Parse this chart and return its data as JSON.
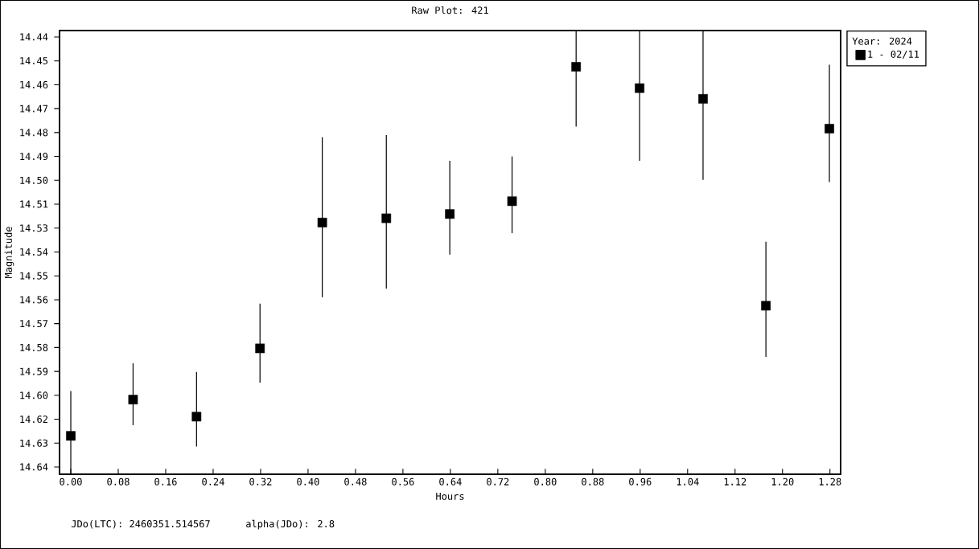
{
  "chart_data": {
    "type": "scatter",
    "title": "Raw Plot: 421",
    "xlabel": "Hours",
    "ylabel": "Magnitude",
    "legend_title": "Year: 2024",
    "annotations": [
      "JDo(LTC): 2460351.514567",
      "alpha(JDo): 2.8"
    ],
    "x": [
      0,
      0.105,
      0.212,
      0.319,
      0.424,
      0.532,
      0.639,
      0.744,
      0.852,
      0.959,
      1.066,
      1.172,
      1.279
    ],
    "series": [
      {
        "name": "1 - 02/11",
        "color": "#000000",
        "values": [
          14.623,
          14.606,
          14.614,
          14.582,
          14.523,
          14.521,
          14.519,
          14.513,
          14.45,
          14.46,
          14.465,
          14.562,
          14.479
        ],
        "errors": [
          [
            14.602,
            14.641
          ],
          [
            14.589,
            14.618
          ],
          [
            14.593,
            14.628
          ],
          [
            14.561,
            14.598
          ],
          [
            14.483,
            14.558
          ],
          [
            14.482,
            14.554
          ],
          [
            14.494,
            14.538
          ],
          [
            14.492,
            14.528
          ],
          [
            14.433,
            14.478
          ],
          [
            14.433,
            14.494
          ],
          [
            14.433,
            14.503
          ],
          [
            14.532,
            14.586
          ],
          [
            14.449,
            14.504
          ]
        ]
      }
    ],
    "xlim": [
      -0.019,
      1.298
    ],
    "ylim": [
      14.641,
      14.433
    ],
    "xticks": [
      {
        "value": 0,
        "label": "0.00"
      },
      {
        "value": 0.08,
        "label": "0.08"
      },
      {
        "value": 0.16,
        "label": "0.16"
      },
      {
        "value": 0.24,
        "label": "0.24"
      },
      {
        "value": 0.32,
        "label": "0.32"
      },
      {
        "value": 0.4,
        "label": "0.40"
      },
      {
        "value": 0.48,
        "label": "0.48"
      },
      {
        "value": 0.56,
        "label": "0.56"
      },
      {
        "value": 0.64,
        "label": "0.64"
      },
      {
        "value": 0.72,
        "label": "0.72"
      },
      {
        "value": 0.8,
        "label": "0.80"
      },
      {
        "value": 0.88,
        "label": "0.88"
      },
      {
        "value": 0.96,
        "label": "0.96"
      },
      {
        "value": 1.04,
        "label": "1.04"
      },
      {
        "value": 1.12,
        "label": "1.12"
      },
      {
        "value": 1.2,
        "label": "1.20"
      },
      {
        "value": 1.28,
        "label": "1.28"
      }
    ],
    "yticks": [
      {
        "value": 14.436,
        "label": "14.44"
      },
      {
        "value": 14.4472,
        "label": "14.45"
      },
      {
        "value": 14.4584,
        "label": "14.46"
      },
      {
        "value": 14.4696,
        "label": "14.47"
      },
      {
        "value": 14.4808,
        "label": "14.48"
      },
      {
        "value": 14.492,
        "label": "14.49"
      },
      {
        "value": 14.5032,
        "label": "14.50"
      },
      {
        "value": 14.5144,
        "label": "14.51"
      },
      {
        "value": 14.5256,
        "label": "14.53"
      },
      {
        "value": 14.5368,
        "label": "14.54"
      },
      {
        "value": 14.548,
        "label": "14.55"
      },
      {
        "value": 14.5592,
        "label": "14.56"
      },
      {
        "value": 14.5704,
        "label": "14.57"
      },
      {
        "value": 14.5816,
        "label": "14.58"
      },
      {
        "value": 14.5928,
        "label": "14.59"
      },
      {
        "value": 14.604,
        "label": "14.60"
      },
      {
        "value": 14.6152,
        "label": "14.62"
      },
      {
        "value": 14.6264,
        "label": "14.63"
      },
      {
        "value": 14.6376,
        "label": "14.64"
      }
    ],
    "grid": false,
    "legend": "right",
    "marker": "square",
    "line_style": "none"
  }
}
